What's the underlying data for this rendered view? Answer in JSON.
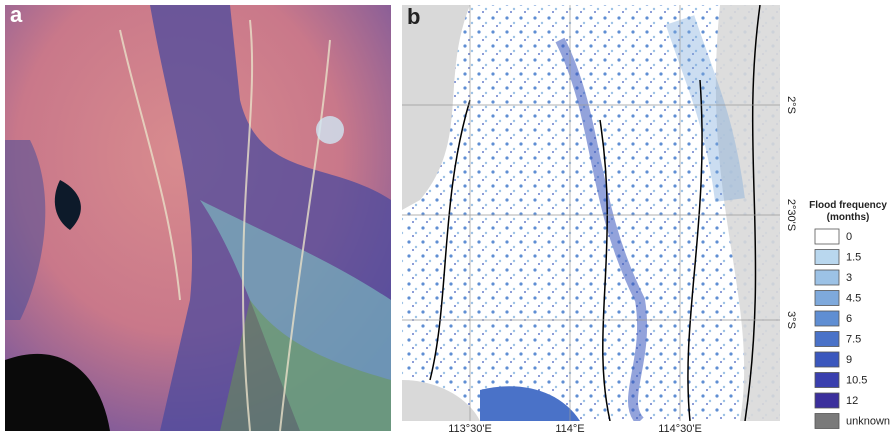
{
  "panels": [
    {
      "label": "a"
    },
    {
      "label": "b",
      "x_labels": [
        "113°30'E",
        "114°E",
        "114°30'E"
      ],
      "y_labels": [
        "2°S",
        "2°30'S",
        "3°S"
      ]
    }
  ],
  "legend": {
    "title": "Flood frequency (months)",
    "items": [
      {
        "label": "0",
        "color": "#ffffff"
      },
      {
        "label": "1.5",
        "color": "#b9d7ee"
      },
      {
        "label": "3",
        "color": "#9cc2e6"
      },
      {
        "label": "4.5",
        "color": "#7ea9dc"
      },
      {
        "label": "6",
        "color": "#5f8ed3"
      },
      {
        "label": "7.5",
        "color": "#4a72c8"
      },
      {
        "label": "9",
        "color": "#3b57bd"
      },
      {
        "label": "10.5",
        "color": "#3a3fae"
      },
      {
        "label": "12",
        "color": "#3b2f9c"
      },
      {
        "label": "unknown",
        "color": "#7a7a7a"
      }
    ]
  }
}
